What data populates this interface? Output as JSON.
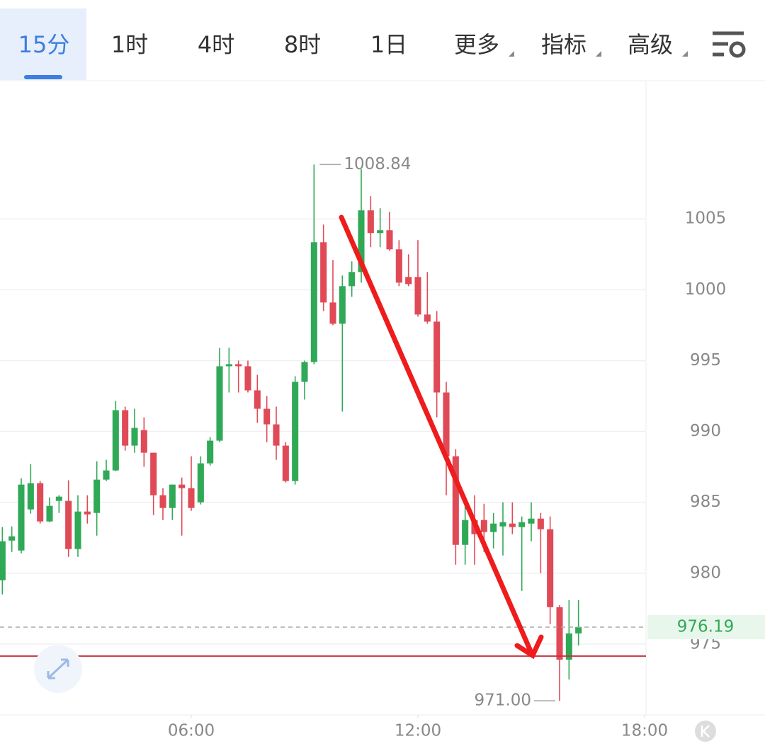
{
  "tabs": [
    "15分",
    "1时",
    "4时",
    "8时",
    "1日",
    "更多",
    "指标",
    "高级"
  ],
  "chart_data": {
    "type": "candlestick",
    "x": [
      1,
      1.25,
      1.5,
      1.75,
      2,
      2.25,
      2.5,
      2.75,
      3,
      3.25,
      3.5,
      3.75,
      4,
      4.25,
      4.5,
      4.75,
      5,
      5.25,
      5.5,
      5.75,
      6,
      6.25,
      6.5,
      6.75,
      7,
      7.25,
      7.5,
      7.75,
      8,
      8.25,
      8.5,
      8.75,
      9,
      9.25,
      9.5,
      9.75,
      10,
      10.25,
      10.5,
      10.75,
      11,
      11.25,
      11.5,
      11.75,
      12,
      12.25,
      12.5,
      12.75,
      13,
      13.25,
      13.5,
      13.75,
      14,
      14.25,
      14.5,
      14.75,
      15,
      15.25,
      15.5,
      15.75,
      16,
      16.25
    ],
    "open": [
      979.5,
      982.3,
      981.6,
      984.5,
      986.35,
      983.65,
      985.1,
      985.1,
      981.7,
      984.35,
      984.25,
      986.6,
      987.25,
      991.5,
      989,
      990.1,
      988.5,
      985.5,
      984.6,
      986.25,
      986,
      985,
      987.75,
      989.35,
      994.6,
      994.75,
      994.6,
      992.9,
      991.6,
      990.5,
      989,
      986.5,
      993.5,
      994.9,
      1003.35,
      999.1,
      997.6,
      1000.25,
      1001.25,
      1005.6,
      1004,
      1004.2,
      1002.85,
      1000.9,
      1000.9,
      998.25,
      997.75,
      992.75,
      988.25,
      982,
      983.75,
      983.75,
      982.9,
      983.3,
      983.5,
      983.25,
      983.5,
      983.85,
      983.1,
      977.6,
      973.9,
      975.75
    ],
    "high": [
      983.25,
      983.3,
      986.7,
      987.7,
      986.5,
      985.35,
      985.5,
      986.55,
      985.5,
      985.5,
      987.9,
      988,
      992.15,
      991.75,
      991.6,
      991,
      988.5,
      986,
      986.25,
      986.75,
      988.25,
      988.25,
      989.6,
      995.9,
      995.9,
      995,
      995,
      994,
      992.5,
      991.75,
      989.25,
      993.9,
      995,
      1008.84,
      1004.6,
      1002.1,
      1001,
      1002,
      1008.5,
      1006.6,
      1005.75,
      1005.5,
      1003.5,
      1002.5,
      1003.5,
      1001.25,
      998.5,
      993.5,
      988.75,
      985.5,
      985.5,
      984.9,
      984.25,
      985,
      985,
      984,
      985,
      984.25,
      984,
      977.75,
      978.1,
      978.1
    ],
    "low": [
      978.5,
      981.5,
      981.4,
      984.2,
      983.5,
      983.6,
      984.25,
      981.15,
      981.15,
      983.5,
      982.65,
      986.5,
      987.2,
      988.65,
      988.5,
      987.5,
      984.1,
      983.75,
      983.75,
      982.65,
      984.4,
      984.85,
      987.6,
      989.25,
      992.75,
      992.75,
      992.75,
      990.6,
      989.25,
      988,
      986.4,
      986.25,
      992.25,
      994.75,
      998.5,
      997.5,
      991.4,
      999.5,
      1000.5,
      1003,
      1003,
      1002.75,
      1000.25,
      1000.25,
      998.1,
      997.6,
      991,
      985.5,
      980.6,
      980.6,
      980.6,
      981.5,
      981.75,
      981.25,
      982.75,
      978.75,
      982.25,
      980,
      976.4,
      971,
      972.5,
      974.9
    ],
    "close": [
      982.25,
      982.6,
      986.25,
      986.35,
      983.65,
      984.75,
      985.4,
      981.7,
      984.35,
      984.15,
      986.6,
      987.25,
      991.5,
      989,
      990.25,
      988.5,
      985.5,
      984.6,
      986.25,
      986,
      984.6,
      987.75,
      989.35,
      994.6,
      994.75,
      994.6,
      992.9,
      991.6,
      990.5,
      989,
      986.5,
      993.5,
      994.9,
      1003.35,
      999.1,
      997.6,
      1000.25,
      1001.25,
      1005.6,
      1004,
      1004.2,
      1002.85,
      1000.5,
      1000.4,
      998.25,
      997.75,
      992.75,
      988.25,
      982,
      983.75,
      982.75,
      982.9,
      983.5,
      983.6,
      983.25,
      983.6,
      983.85,
      983.1,
      977.6,
      973.9,
      975.75,
      976.19
    ],
    "up_color": "#30a957",
    "down_color": "#e04a57",
    "xlim": [
      0.9375,
      18.0375
    ],
    "xticks": [
      {
        "value": 6,
        "label": "06:00"
      },
      {
        "value": 12,
        "label": "12:00"
      },
      {
        "value": 18,
        "label": "18:00"
      }
    ],
    "ylim": [
      970,
      1014.75
    ],
    "yticks": [
      975,
      980,
      985,
      990,
      995,
      1000,
      1005
    ],
    "grid": true,
    "high_marker": 1008.84,
    "low_marker": {
      "value": 971,
      "label": "971.00"
    },
    "last_price": 976.19,
    "alert_line": 974.15,
    "alert_color": "#c8303c"
  }
}
